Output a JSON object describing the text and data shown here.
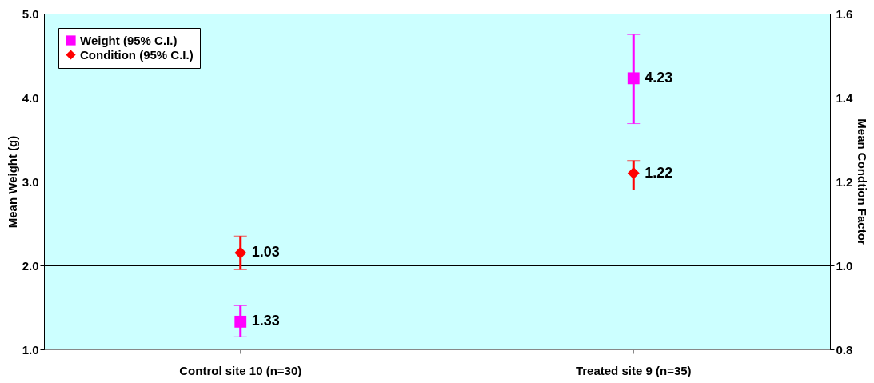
{
  "chart_data": {
    "type": "scatter",
    "categories": [
      "Control site 10 (n=30)",
      "Treated site 9 (n=35)"
    ],
    "ylabel": "Mean Weight (g)",
    "y2label": "Mean Condtion Factor",
    "ylim": [
      1.0,
      5.0
    ],
    "yticks": [
      {
        "value": 1,
        "label": "1.0"
      },
      {
        "value": 2,
        "label": "2.0"
      },
      {
        "value": 3,
        "label": "3.0"
      },
      {
        "value": 4,
        "label": "4.0"
      },
      {
        "value": 5,
        "label": "5.0"
      }
    ],
    "y2lim": [
      0.8,
      1.6
    ],
    "y2ticks": [
      {
        "value": 0.8,
        "label": "0.8"
      },
      {
        "value": 1.0,
        "label": "1.0"
      },
      {
        "value": 1.2,
        "label": "1.2"
      },
      {
        "value": 1.4,
        "label": "1.4"
      },
      {
        "value": 1.6,
        "label": "1.6"
      }
    ],
    "grid": "y",
    "legend": "top left",
    "data_labels": true,
    "series": [
      {
        "name": "Weight (95% C.I.)",
        "color": "#ff00ff",
        "marker": "square",
        "values": [
          1.33,
          4.23
        ],
        "errors": [
          [
            1.15,
            1.52
          ],
          [
            3.69,
            4.75
          ]
        ]
      },
      {
        "name": "Condition (95% C.I.)",
        "color": "#ff0000",
        "marker": "diamond",
        "axis": "y2",
        "values": [
          1.03,
          1.22
        ],
        "errors": [
          [
            0.99,
            1.07
          ],
          [
            1.18,
            1.25
          ]
        ]
      }
    ]
  }
}
